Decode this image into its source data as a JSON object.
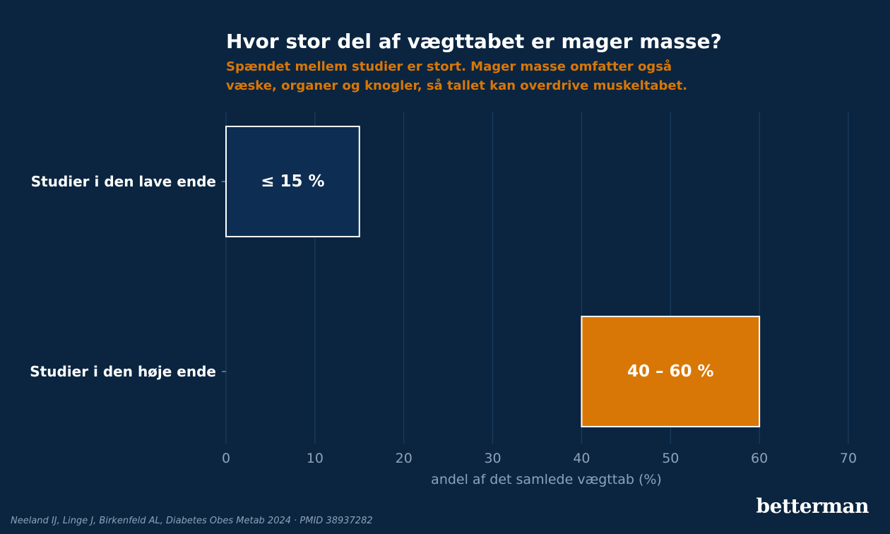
{
  "chart_data": {
    "type": "bar",
    "orientation": "horizontal",
    "title": "Hvor stor del af vægttabet er mager masse?",
    "subtitle_lines": [
      "Spændet mellem studier er stort. Mager masse omfatter også",
      "væske, organer og knogler, så tallet kan overdrive muskeltabet."
    ],
    "categories": [
      "Studier i den lave ende",
      "Studier i den høje ende"
    ],
    "ranges": [
      [
        0,
        15
      ],
      [
        40,
        60
      ]
    ],
    "bar_labels": [
      "≤ 15 %",
      "40 – 60 %"
    ],
    "bar_colors": [
      "#0d2e52",
      "#d97706"
    ],
    "xlabel": "andel af det samlede vægttab (%)",
    "xlim": [
      0,
      70
    ],
    "xticks": [
      0,
      10,
      20,
      30,
      40,
      50,
      60,
      70
    ],
    "grid": "vertical"
  },
  "footer": {
    "source": "Neeland IJ, Linge J, Birkenfeld AL, Diabetes Obes Metab 2024 · PMID 38937282",
    "brand": "betterman"
  },
  "colors": {
    "background": "#0b2540",
    "grid": "#1f4266",
    "accent": "#d97706",
    "tick_text": "#8ea2ba"
  }
}
